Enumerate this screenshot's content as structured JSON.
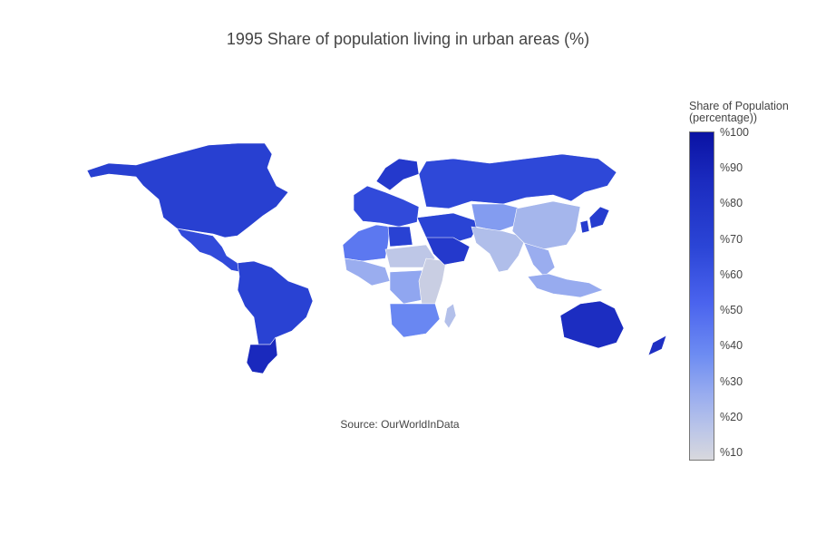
{
  "title": "1995 Share of population living in urban areas (%)",
  "source": "Source: OurWorldInData",
  "colorbar": {
    "title_line1": "Share of Population",
    "title_line2": "(percentage))",
    "ticks": [
      "%100",
      "%90",
      "%80",
      "%70",
      "%60",
      "%50",
      "%40",
      "%30",
      "%20",
      "%10"
    ],
    "range": [
      10,
      100
    ],
    "colors": [
      "#d8d8dd",
      "#bcc6e8",
      "#98acef",
      "#6d8cf2",
      "#4a63ee",
      "#2b45d6",
      "#1b2bbf",
      "#0a12a3"
    ]
  },
  "map_data": {
    "type": "choropleth",
    "projection": "equirectangular",
    "regions": [
      {
        "name": "North America",
        "value": 77
      },
      {
        "name": "Mexico & Central America",
        "value": 72
      },
      {
        "name": "South America",
        "value": 76
      },
      {
        "name": "Argentina & Chile",
        "value": 88
      },
      {
        "name": "Europe",
        "value": 72
      },
      {
        "name": "Scandinavia",
        "value": 80
      },
      {
        "name": "Russia",
        "value": 73
      },
      {
        "name": "North Africa",
        "value": 55
      },
      {
        "name": "Libya",
        "value": 76
      },
      {
        "name": "Sahel",
        "value": 22
      },
      {
        "name": "West Africa",
        "value": 35
      },
      {
        "name": "Central Africa",
        "value": 38
      },
      {
        "name": "East Africa",
        "value": 17
      },
      {
        "name": "Southern Africa",
        "value": 50
      },
      {
        "name": "Middle East",
        "value": 75
      },
      {
        "name": "Saudi Arabia",
        "value": 80
      },
      {
        "name": "Central Asia",
        "value": 42
      },
      {
        "name": "South Asia",
        "value": 27
      },
      {
        "name": "China",
        "value": 31
      },
      {
        "name": "Southeast Asia",
        "value": 35
      },
      {
        "name": "Indonesia",
        "value": 36
      },
      {
        "name": "Japan",
        "value": 78
      },
      {
        "name": "Korea",
        "value": 78
      },
      {
        "name": "Australia",
        "value": 86
      },
      {
        "name": "New Zealand",
        "value": 85
      },
      {
        "name": "Madagascar",
        "value": 26
      }
    ]
  }
}
